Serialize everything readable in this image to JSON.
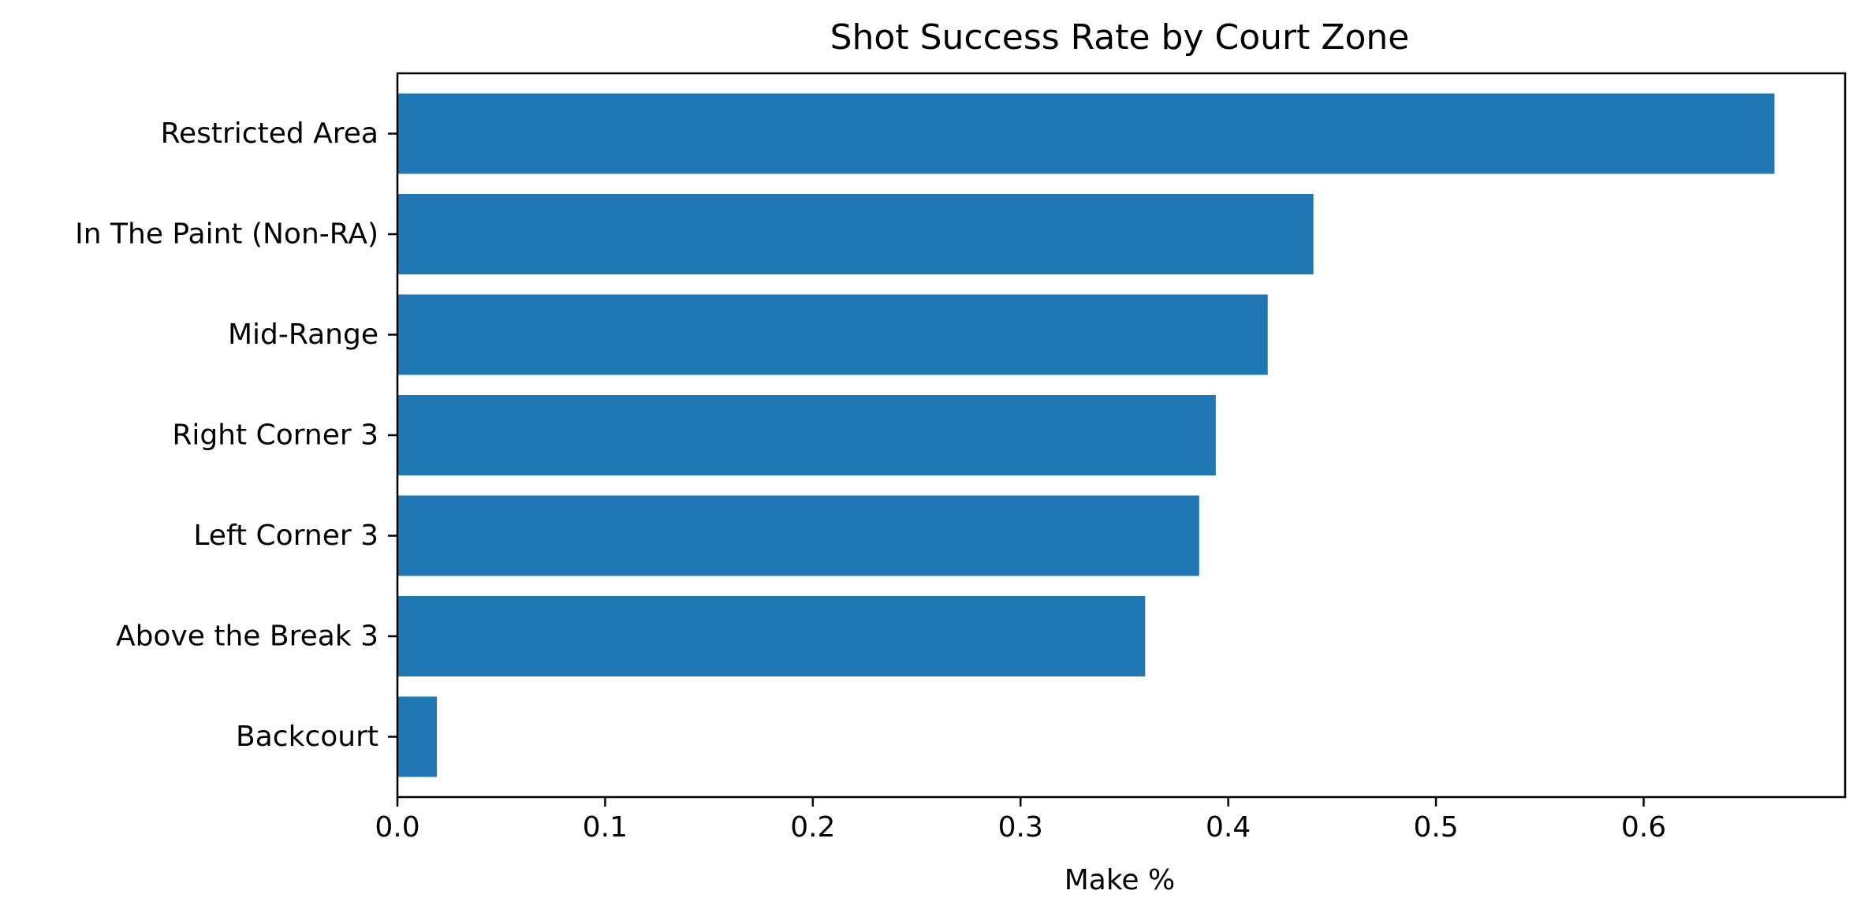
{
  "chart_data": {
    "type": "bar",
    "orientation": "horizontal",
    "title": "Shot Success Rate by Court Zone",
    "xlabel": "Make %",
    "ylabel": "",
    "categories": [
      "Restricted Area",
      "In The Paint (Non-RA)",
      "Mid-Range",
      "Right Corner 3",
      "Left Corner 3",
      "Above the Break 3",
      "Backcourt"
    ],
    "values": [
      0.663,
      0.441,
      0.419,
      0.394,
      0.386,
      0.36,
      0.019
    ],
    "xlim": [
      0,
      0.697
    ],
    "xticks": [
      0.0,
      0.1,
      0.2,
      0.3,
      0.4,
      0.5,
      0.6
    ],
    "xtick_labels": [
      "0.0",
      "0.1",
      "0.2",
      "0.3",
      "0.4",
      "0.5",
      "0.6"
    ],
    "bar_color": "#1f77b4",
    "grid": false,
    "legend": "none"
  }
}
